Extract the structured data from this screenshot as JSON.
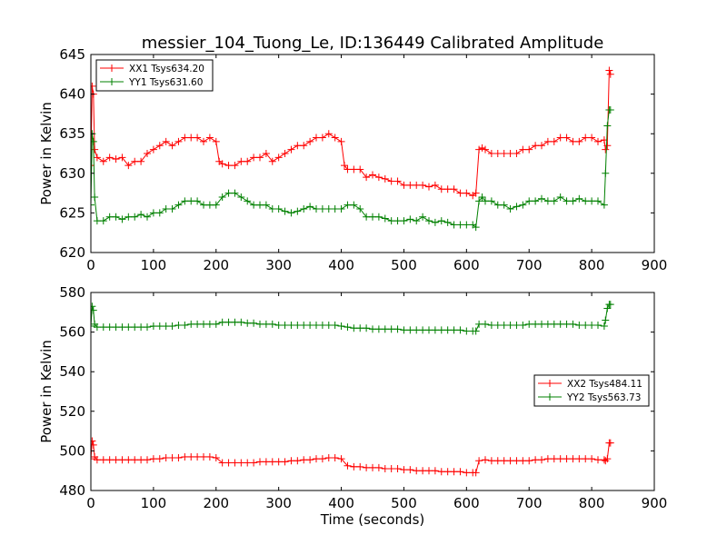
{
  "figure": {
    "title": "messier_104_Tuong_Le, ID:136449 Calibrated Amplitude"
  },
  "chart_data": [
    {
      "type": "line",
      "title": "messier_104_Tuong_Le, ID:136449 Calibrated Amplitude",
      "xlabel": "",
      "ylabel": "Power in Kelvin",
      "xlim": [
        0,
        900
      ],
      "ylim": [
        620,
        645
      ],
      "xticks": [
        "0",
        "100",
        "200",
        "300",
        "400",
        "500",
        "600",
        "700",
        "800",
        "900"
      ],
      "yticks": [
        "620",
        "625",
        "630",
        "635",
        "640",
        "645"
      ],
      "grid": false,
      "legend_position": "top-left",
      "marker": "plus",
      "series": [
        {
          "name": "XX1 Tsys634.20",
          "color": "#ff0000",
          "x": [
            0,
            2,
            4,
            6,
            10,
            20,
            30,
            40,
            50,
            60,
            70,
            80,
            90,
            100,
            110,
            120,
            130,
            140,
            150,
            160,
            170,
            180,
            190,
            200,
            205,
            210,
            220,
            230,
            240,
            250,
            260,
            270,
            280,
            290,
            300,
            310,
            320,
            330,
            340,
            350,
            360,
            370,
            380,
            390,
            400,
            405,
            410,
            420,
            430,
            440,
            450,
            460,
            470,
            480,
            490,
            500,
            510,
            520,
            530,
            540,
            550,
            560,
            570,
            580,
            590,
            600,
            610,
            615,
            620,
            625,
            630,
            640,
            650,
            660,
            670,
            680,
            690,
            700,
            710,
            720,
            730,
            740,
            750,
            760,
            770,
            780,
            790,
            800,
            810,
            820,
            822,
            825,
            828,
            830
          ],
          "y": [
            631,
            641,
            640,
            633,
            632,
            631.5,
            632,
            631.8,
            632,
            631,
            631.5,
            631.5,
            632.5,
            633,
            633.5,
            634,
            633.5,
            634,
            634.5,
            634.5,
            634.5,
            634,
            634.5,
            634,
            631.5,
            631.2,
            631,
            631,
            631.5,
            631.5,
            632,
            632,
            632.5,
            631.5,
            632,
            632.5,
            633,
            633.5,
            633.5,
            634,
            634.5,
            634.5,
            635,
            634.5,
            634,
            631,
            630.5,
            630.5,
            630.5,
            629.5,
            629.8,
            629.5,
            629.3,
            629,
            629,
            628.5,
            628.5,
            628.5,
            628.5,
            628.3,
            628.5,
            628,
            628,
            628,
            627.5,
            627.5,
            627.2,
            627.5,
            633,
            633.2,
            633,
            632.5,
            632.5,
            632.5,
            632.5,
            632.5,
            633,
            633,
            633.5,
            633.5,
            634,
            634,
            634.5,
            634.5,
            634,
            634,
            634.5,
            634.5,
            634,
            634.2,
            633,
            633.5,
            643,
            642.5
          ]
        },
        {
          "name": "YY1 Tsys631.60",
          "color": "#008000",
          "x": [
            0,
            2,
            4,
            6,
            10,
            20,
            30,
            40,
            50,
            60,
            70,
            80,
            90,
            100,
            110,
            120,
            130,
            140,
            150,
            160,
            170,
            180,
            190,
            200,
            210,
            220,
            230,
            240,
            250,
            260,
            270,
            280,
            290,
            300,
            310,
            320,
            330,
            340,
            350,
            360,
            370,
            380,
            390,
            400,
            410,
            420,
            430,
            440,
            450,
            460,
            470,
            480,
            490,
            500,
            510,
            520,
            530,
            540,
            550,
            560,
            570,
            580,
            590,
            600,
            610,
            615,
            620,
            625,
            630,
            640,
            650,
            660,
            670,
            680,
            690,
            700,
            710,
            720,
            730,
            740,
            750,
            760,
            770,
            780,
            790,
            800,
            810,
            820,
            822,
            825,
            828,
            830
          ],
          "y": [
            626,
            635,
            634,
            627,
            624,
            624,
            624.5,
            624.5,
            624.2,
            624.5,
            624.5,
            624.8,
            624.5,
            625,
            625,
            625.5,
            625.5,
            626,
            626.5,
            626.5,
            626.5,
            626,
            626,
            626,
            627,
            627.5,
            627.5,
            627,
            626.5,
            626,
            626,
            626,
            625.5,
            625.5,
            625.2,
            625,
            625.2,
            625.5,
            625.8,
            625.5,
            625.5,
            625.5,
            625.5,
            625.5,
            626,
            626,
            625.5,
            624.5,
            624.5,
            624.5,
            624.3,
            624,
            624,
            624,
            624.2,
            624,
            624.5,
            624,
            623.8,
            624,
            623.8,
            623.5,
            623.5,
            623.5,
            623.5,
            623.2,
            626.5,
            627,
            626.5,
            626.5,
            626,
            626,
            625.5,
            625.8,
            626,
            626.5,
            626.5,
            626.8,
            626.5,
            626.5,
            627,
            626.5,
            626.5,
            626.8,
            626.5,
            626.5,
            626.5,
            626,
            630,
            636,
            638,
            638
          ]
        }
      ]
    },
    {
      "type": "line",
      "title": "",
      "xlabel": "Time (seconds)",
      "ylabel": "Power in Kelvin",
      "xlim": [
        0,
        900
      ],
      "ylim": [
        480,
        580
      ],
      "xticks": [
        "0",
        "100",
        "200",
        "300",
        "400",
        "500",
        "600",
        "700",
        "800",
        "900"
      ],
      "yticks": [
        "480",
        "500",
        "520",
        "540",
        "560",
        "580"
      ],
      "grid": false,
      "legend_position": "center-right",
      "marker": "plus",
      "series": [
        {
          "name": "XX2 Tsys484.11",
          "color": "#ff0000",
          "x": [
            0,
            2,
            4,
            6,
            10,
            20,
            30,
            40,
            50,
            60,
            70,
            80,
            90,
            100,
            110,
            120,
            130,
            140,
            150,
            160,
            170,
            180,
            190,
            200,
            210,
            220,
            230,
            240,
            250,
            260,
            270,
            280,
            290,
            300,
            310,
            320,
            330,
            340,
            350,
            360,
            370,
            380,
            390,
            400,
            410,
            420,
            430,
            440,
            450,
            460,
            470,
            480,
            490,
            500,
            510,
            520,
            530,
            540,
            550,
            560,
            570,
            580,
            590,
            600,
            610,
            615,
            620,
            630,
            640,
            650,
            660,
            670,
            680,
            690,
            700,
            710,
            720,
            730,
            740,
            750,
            760,
            770,
            780,
            790,
            800,
            810,
            820,
            822,
            825,
            828,
            830
          ],
          "y": [
            496,
            505,
            503,
            497,
            495.5,
            495.5,
            495.5,
            495.5,
            495.5,
            495.5,
            495.5,
            495.5,
            495.5,
            496,
            496,
            496.5,
            496.5,
            496.5,
            497,
            497,
            497,
            497,
            497,
            496.5,
            494,
            494,
            494,
            494,
            494,
            494,
            494.5,
            494.5,
            494.5,
            494.5,
            494.5,
            495,
            495,
            495.5,
            495.5,
            496,
            496,
            496.5,
            496.5,
            496,
            492.5,
            492,
            492,
            491.5,
            491.5,
            491.5,
            491,
            491,
            491,
            490.5,
            490.5,
            490,
            490,
            490,
            490,
            489.5,
            489.5,
            489.5,
            489.5,
            489,
            489,
            489,
            495,
            495.5,
            495,
            495,
            495,
            495,
            495,
            495,
            495,
            495.5,
            495.5,
            496,
            496,
            496,
            496,
            496,
            496,
            496,
            496,
            495.5,
            495.5,
            495,
            496,
            504,
            504
          ]
        },
        {
          "name": "YY2 Tsys563.73",
          "color": "#008000",
          "x": [
            0,
            2,
            4,
            6,
            10,
            20,
            30,
            40,
            50,
            60,
            70,
            80,
            90,
            100,
            110,
            120,
            130,
            140,
            150,
            160,
            170,
            180,
            190,
            200,
            210,
            220,
            230,
            240,
            250,
            260,
            270,
            280,
            290,
            300,
            310,
            320,
            330,
            340,
            350,
            360,
            370,
            380,
            390,
            400,
            410,
            420,
            430,
            440,
            450,
            460,
            470,
            480,
            490,
            500,
            510,
            520,
            530,
            540,
            550,
            560,
            570,
            580,
            590,
            600,
            610,
            615,
            620,
            630,
            640,
            650,
            660,
            670,
            680,
            690,
            700,
            710,
            720,
            730,
            740,
            750,
            760,
            770,
            780,
            790,
            800,
            810,
            820,
            822,
            825,
            828,
            830
          ],
          "y": [
            563,
            573,
            571,
            564,
            562.5,
            562.5,
            562.5,
            562.5,
            562.5,
            562.5,
            562.5,
            562.5,
            562.5,
            563,
            563,
            563,
            563,
            563.5,
            563.5,
            564,
            564,
            564,
            564,
            564,
            565,
            565,
            565,
            565,
            564.5,
            564.5,
            564,
            564,
            564,
            563.5,
            563.5,
            563.5,
            563.5,
            563.5,
            563.5,
            563.5,
            563.5,
            563.5,
            563.5,
            563,
            562.5,
            562,
            562,
            562,
            561.5,
            561.5,
            561.5,
            561.5,
            561.5,
            561,
            561,
            561,
            561,
            561,
            561,
            561,
            561,
            561,
            561,
            560.5,
            560.5,
            560.5,
            564,
            564,
            563.5,
            563.5,
            563.5,
            563.5,
            563.5,
            563.5,
            564,
            564,
            564,
            564,
            564,
            564,
            564,
            564,
            563.5,
            563.5,
            563.5,
            563.5,
            563,
            566,
            572,
            574,
            574
          ]
        }
      ]
    }
  ]
}
